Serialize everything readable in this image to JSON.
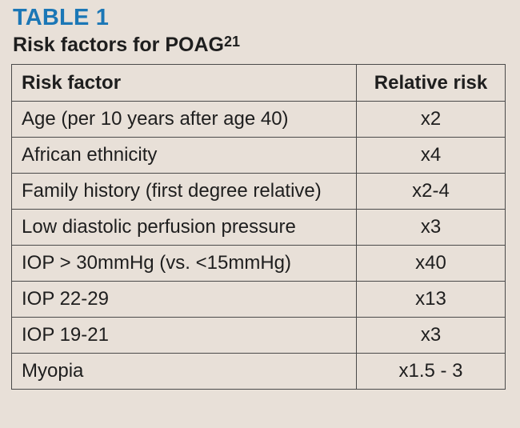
{
  "header": {
    "label": "TABLE 1",
    "title": "Risk factors for POAG",
    "title_ref": "21"
  },
  "table": {
    "columns": [
      "Risk factor",
      "Relative risk"
    ],
    "rows": [
      {
        "factor": "Age (per 10 years after age 40)",
        "risk": "x2"
      },
      {
        "factor": "African ethnicity",
        "risk": "x4"
      },
      {
        "factor": "Family history (first degree relative)",
        "risk": "x2-4"
      },
      {
        "factor": "Low diastolic perfusion pressure",
        "risk": "x3"
      },
      {
        "factor": "IOP > 30mmHg (vs. <15mmHg)",
        "risk": "x40"
      },
      {
        "factor": "IOP 22-29",
        "risk": "x13"
      },
      {
        "factor": "IOP 19-21",
        "risk": "x3"
      },
      {
        "factor": "Myopia",
        "risk": "x1.5 - 3"
      }
    ]
  },
  "colors": {
    "accent": "#1b77b6",
    "background": "#e8e0d8",
    "border": "#4a4a4a"
  }
}
